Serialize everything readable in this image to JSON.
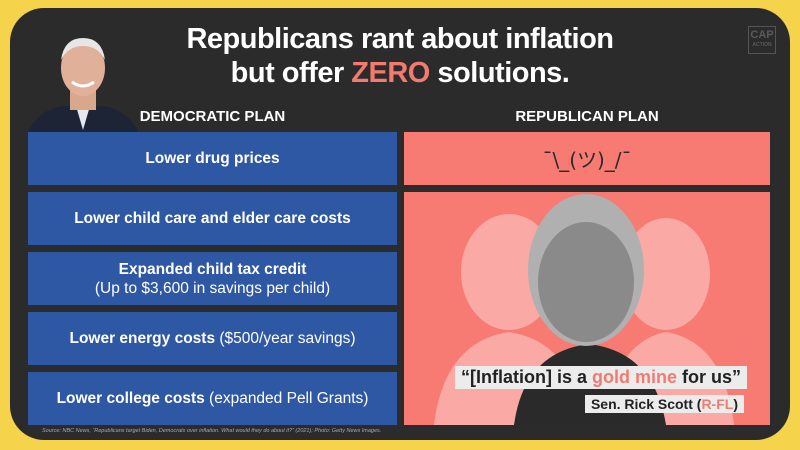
{
  "title": {
    "line1": "Republicans rant about inflation",
    "line2_pre": "but offer ",
    "line2_highlight": "ZERO",
    "line2_post": " solutions."
  },
  "logo": {
    "line1": "CAP",
    "line2": "ACTION"
  },
  "democratic": {
    "heading": "DEMOCRATIC PLAN",
    "items": [
      {
        "bold": "Lower drug prices",
        "rest": ""
      },
      {
        "bold": "Lower child care and elder care costs",
        "rest": ""
      },
      {
        "bold": "Expanded child tax credit",
        "rest": "(Up to $3,600 in savings per child)"
      },
      {
        "bold": "Lower energy costs",
        "rest": " ($500/year savings)"
      },
      {
        "bold": "Lower college costs",
        "rest": " (expanded Pell Grants)"
      }
    ]
  },
  "republican": {
    "heading": "REPUBLICAN PLAN",
    "shrug": "¯\\_(ツ)_/¯",
    "quote": {
      "pre": "“[Inflation] is a ",
      "highlight": "gold mine",
      "post": " for us”"
    },
    "attribution": {
      "pre": "Sen. Rick Scott (",
      "highlight": "R-FL",
      "post": ")"
    }
  },
  "source": "Source: NBC News, “Republicans target Biden, Democrats over inflation. What would they do about it?” (2021); Photo: Getty News Images.",
  "colors": {
    "yellow": "#f5d44c",
    "dark": "#2b2b2b",
    "blue": "#2f58a4",
    "red": "#f87b73"
  }
}
